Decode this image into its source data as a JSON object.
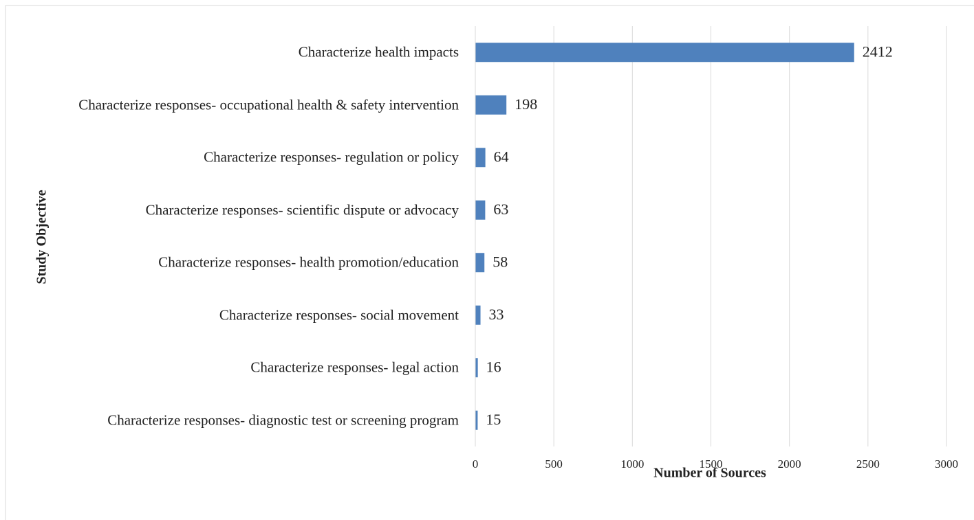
{
  "chart_data": {
    "type": "bar",
    "orientation": "horizontal",
    "categories": [
      "Characterize health impacts",
      "Characterize responses- occupational health & safety intervention",
      "Characterize responses- regulation or policy",
      "Characterize responses- scientific dispute or advocacy",
      "Characterize responses- health promotion/education",
      "Characterize responses- social movement",
      "Characterize responses- legal action",
      "Characterize responses- diagnostic test or screening program"
    ],
    "values": [
      2412,
      198,
      64,
      63,
      58,
      33,
      16,
      15
    ],
    "color": "#4f81bd",
    "xlabel": "Number of Sources",
    "ylabel": "Study Objective",
    "xlim": [
      0,
      3000
    ],
    "xticks": [
      0,
      500,
      1000,
      1500,
      2000,
      2500,
      3000
    ],
    "grid": true
  }
}
